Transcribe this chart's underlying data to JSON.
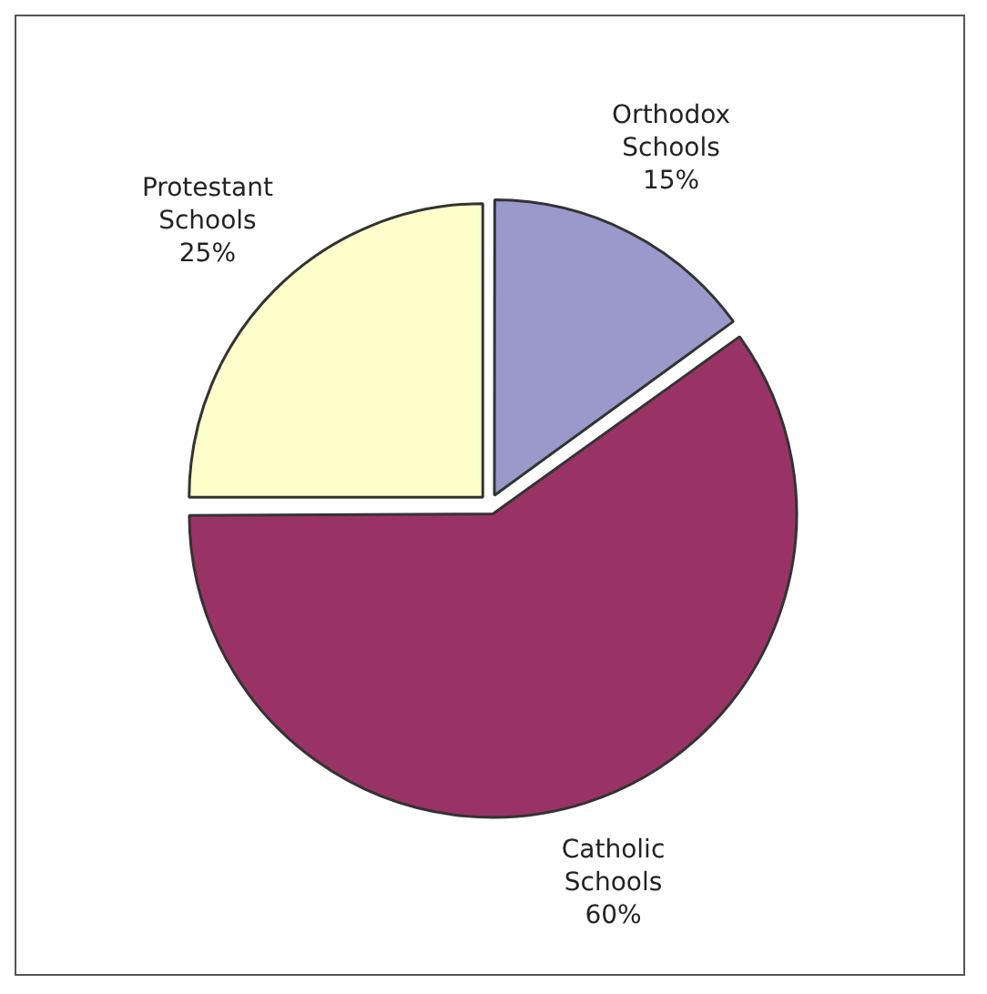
{
  "chart_data": {
    "type": "pie",
    "categories": [
      "Orthodox Schools",
      "Catholic Schools",
      "Protestant Schools"
    ],
    "values": [
      15,
      60,
      25
    ],
    "colors": [
      "#9999cc",
      "#993366",
      "#ffffcc"
    ],
    "value_labels": [
      "15%",
      "60%",
      "25%"
    ],
    "legend": false
  }
}
